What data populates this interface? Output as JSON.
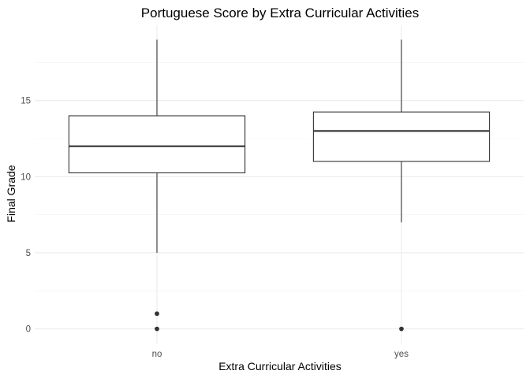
{
  "chart_data": {
    "type": "boxplot",
    "title": "Portuguese Score by Extra Curricular Activities",
    "xlabel": "Extra Curricular Activities",
    "ylabel": "Final Grade",
    "categories": [
      "no",
      "yes"
    ],
    "boxes": [
      {
        "category": "no",
        "lower_whisker": 5,
        "q1": 10.25,
        "median": 12,
        "q3": 14,
        "upper_whisker": 19,
        "outliers": [
          0,
          1
        ]
      },
      {
        "category": "yes",
        "lower_whisker": 7,
        "q1": 11,
        "median": 13,
        "q3": 14.25,
        "upper_whisker": 19,
        "outliers": [
          0
        ]
      }
    ],
    "y_ticks": [
      0,
      5,
      10,
      15
    ],
    "ylim": [
      -0.95,
      19.95
    ],
    "grid": true,
    "legend": "none"
  }
}
